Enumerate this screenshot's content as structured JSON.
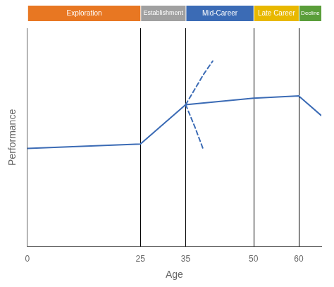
{
  "chart_data": {
    "type": "line",
    "xlabel": "Age",
    "ylabel": "Performance",
    "xlim": [
      0,
      65
    ],
    "ylim": [
      0,
      10
    ],
    "xticks": [
      0,
      25,
      35,
      50,
      60
    ],
    "yticks": [],
    "tick_labels": "x",
    "grid": false,
    "series": [
      {
        "x": [
          0,
          25,
          35,
          50,
          60,
          65
        ],
        "values": [
          4.5,
          4.7,
          6.5,
          6.8,
          6.9,
          6.0
        ],
        "color": "#3B6BB5",
        "line_style": "solid"
      },
      {
        "x": [
          35,
          37,
          39,
          41
        ],
        "values": [
          6.5,
          7.2,
          7.9,
          8.5
        ],
        "color": "#3B6BB5",
        "line_style": "dashed"
      },
      {
        "x": [
          35,
          37,
          39
        ],
        "values": [
          6.5,
          5.5,
          4.4
        ],
        "color": "#3B6BB5",
        "line_style": "dashed"
      }
    ],
    "vlines": {
      "x": [
        25,
        35,
        50,
        60
      ],
      "color": "#000000"
    },
    "stages": {
      "labels": [
        "Exploration",
        "Establishment",
        "Mid-Career",
        "Late Career",
        "Decline"
      ],
      "colors": [
        "#E87722",
        "#A0A0A0",
        "#3B6BB5",
        "#E8B800",
        "#5A9E3A"
      ],
      "boundaries": [
        0,
        25,
        35,
        50,
        60,
        65
      ]
    }
  }
}
